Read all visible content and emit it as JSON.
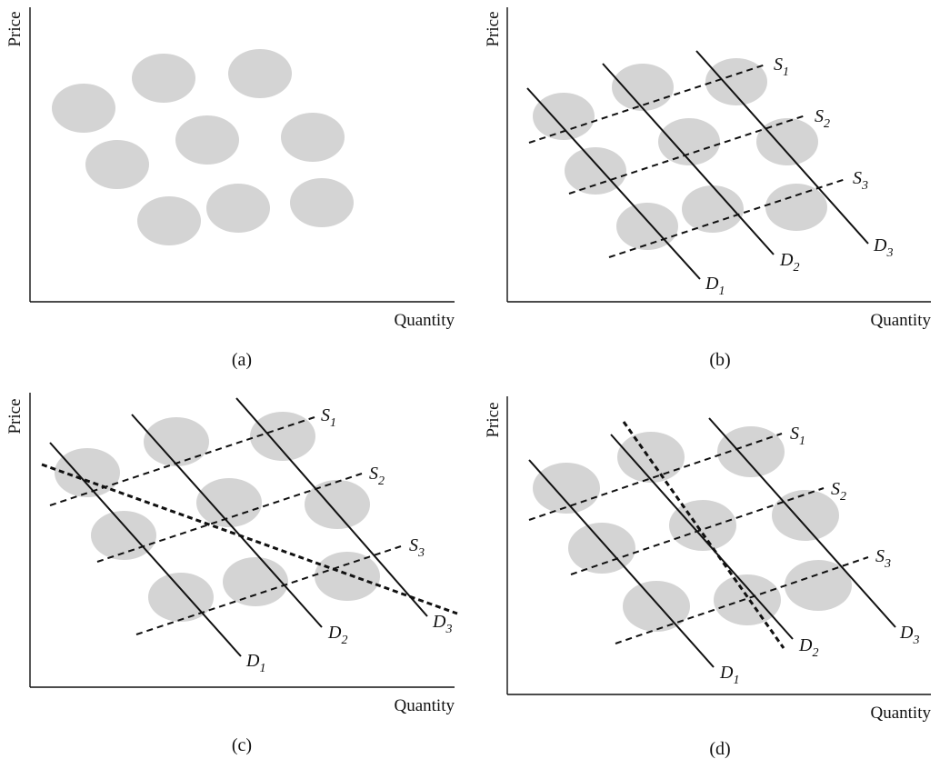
{
  "axis_labels": {
    "y": "Price",
    "x": "Quantity"
  },
  "curve_labels": {
    "S1": {
      "base": "S",
      "sub": "1"
    },
    "S2": {
      "base": "S",
      "sub": "2"
    },
    "S3": {
      "base": "S",
      "sub": "3"
    },
    "D1": {
      "base": "D",
      "sub": "1"
    },
    "D2": {
      "base": "D",
      "sub": "2"
    },
    "D3": {
      "base": "D",
      "sub": "3"
    }
  },
  "panels": [
    {
      "caption": "(a)",
      "supply_curves": [],
      "demand_curves": [],
      "fitted_line": false
    },
    {
      "caption": "(b)",
      "supply_curves": [
        "S1",
        "S2",
        "S3"
      ],
      "demand_curves": [
        "D1",
        "D2",
        "D3"
      ],
      "fitted_line": false
    },
    {
      "caption": "(c)",
      "supply_curves": [
        "S1",
        "S2",
        "S3"
      ],
      "demand_curves": [
        "D1",
        "D2",
        "D3"
      ],
      "fitted_line": true
    },
    {
      "caption": "(d)",
      "supply_curves": [
        "S1",
        "S2",
        "S3"
      ],
      "demand_curves": [
        "D1",
        "D2",
        "D3"
      ],
      "fitted_line": true
    }
  ],
  "colors": {
    "observation_fill": "#d4d4d4",
    "line": "#111111"
  }
}
